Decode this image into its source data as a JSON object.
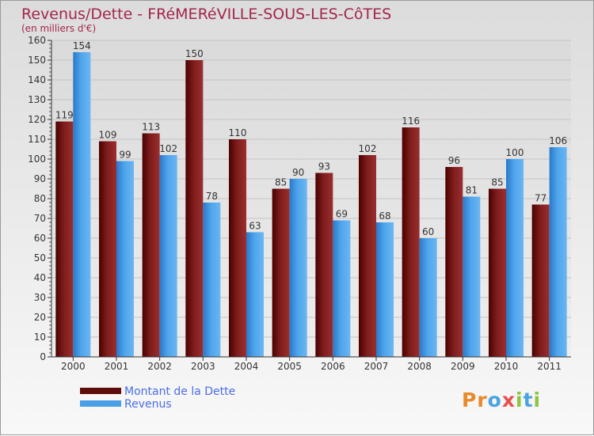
{
  "chart_data": {
    "type": "bar",
    "title": "Revenus/Dette - FRéMERéVILLE-SOUS-LES-CôTES",
    "subtitle": "(en milliers d'€)",
    "categories": [
      "2000",
      "2001",
      "2002",
      "2003",
      "2004",
      "2005",
      "2006",
      "2007",
      "2008",
      "2009",
      "2010",
      "2011"
    ],
    "series": [
      {
        "name": "Montant de la Dette",
        "values": [
          119,
          109,
          113,
          150,
          110,
          85,
          93,
          102,
          116,
          96,
          85,
          77
        ],
        "color": "#7a1a1a"
      },
      {
        "name": "Revenus",
        "values": [
          154,
          99,
          102,
          78,
          63,
          90,
          69,
          68,
          60,
          81,
          100,
          106
        ],
        "color": "#4a9fe6"
      }
    ],
    "ylim": [
      0,
      160
    ],
    "yticks": [
      0,
      10,
      20,
      30,
      40,
      50,
      60,
      70,
      80,
      90,
      100,
      110,
      120,
      130,
      140,
      150,
      160
    ],
    "grid": true,
    "legend": "bottom-left"
  },
  "logo": {
    "letters": [
      {
        "ch": "P",
        "color": "#e8892a"
      },
      {
        "ch": "r",
        "color": "#e8892a"
      },
      {
        "ch": "o",
        "color": "#4aa3e0"
      },
      {
        "ch": "x",
        "color": "#e94e4e"
      },
      {
        "ch": "i",
        "color": "#8cc63f"
      },
      {
        "ch": "t",
        "color": "#4aa3e0"
      },
      {
        "ch": "i",
        "color": "#8cc63f"
      }
    ]
  }
}
